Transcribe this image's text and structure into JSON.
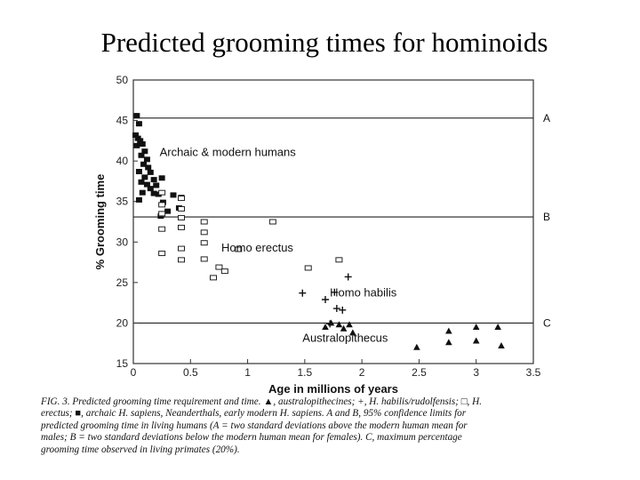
{
  "slide": {
    "title": "Predicted grooming times for hominoids"
  },
  "caption": {
    "lines": [
      "FIG. 3. Predicted grooming time requirement and time. ▲, australopithecines; +, H. habilis/rudolfensis; □, H.",
      "erectus; ■, archaic H. sapiens, Neanderthals, early modern H. sapiens. A and B, 95% confidence limits for",
      "predicted grooming time in living humans (A = two standard deviations above the modern human mean for",
      "males; B = two standard deviations below the modern human mean for females). C, maximum percentage",
      "grooming time observed in living primates (20%)."
    ]
  },
  "chart_data": {
    "type": "scatter",
    "title": "",
    "xlabel": "Age in millions of years",
    "ylabel": "% Grooming time",
    "xlim": [
      0,
      3.5
    ],
    "ylim": [
      15,
      50
    ],
    "xticks": [
      "0",
      "0.5",
      "1",
      "1.5",
      "2",
      "2.5",
      "3",
      "3.5"
    ],
    "yticks": [
      "15",
      "20",
      "25",
      "30",
      "35",
      "40",
      "45",
      "50"
    ],
    "grid": false,
    "reference_lines": [
      {
        "label": "A",
        "y": 45.3
      },
      {
        "label": "B",
        "y": 33.1
      },
      {
        "label": "C",
        "y": 20.0
      }
    ],
    "annotations": [
      {
        "text": "Archaic & modern humans",
        "x": 0.23,
        "y": 40.6
      },
      {
        "text": "Homo erectus",
        "x": 0.77,
        "y": 28.8
      },
      {
        "text": "Homo habilis",
        "x": 1.72,
        "y": 23.3
      },
      {
        "text": "Australopithecus",
        "x": 1.48,
        "y": 17.7
      }
    ],
    "series": [
      {
        "marker": "filled-square",
        "points": [
          [
            0.03,
            45.6
          ],
          [
            0.05,
            44.6
          ],
          [
            0.02,
            43.2
          ],
          [
            0.04,
            42.8
          ],
          [
            0.06,
            42.5
          ],
          [
            0.08,
            42.1
          ],
          [
            0.03,
            41.9
          ],
          [
            0.1,
            41.2
          ],
          [
            0.07,
            40.7
          ],
          [
            0.12,
            40.2
          ],
          [
            0.09,
            39.6
          ],
          [
            0.13,
            39.2
          ],
          [
            0.05,
            38.7
          ],
          [
            0.15,
            38.6
          ],
          [
            0.1,
            38.0
          ],
          [
            0.18,
            37.7
          ],
          [
            0.07,
            37.4
          ],
          [
            0.12,
            37.1
          ],
          [
            0.2,
            37.0
          ],
          [
            0.25,
            37.9
          ],
          [
            0.15,
            36.6
          ],
          [
            0.08,
            36.1
          ],
          [
            0.22,
            35.9
          ],
          [
            0.18,
            36.0
          ],
          [
            0.35,
            35.8
          ],
          [
            0.42,
            35.5
          ],
          [
            0.26,
            34.9
          ],
          [
            0.05,
            35.2
          ],
          [
            0.4,
            34.2
          ],
          [
            0.3,
            33.8
          ],
          [
            0.24,
            33.2
          ]
        ]
      },
      {
        "marker": "open-square",
        "points": [
          [
            0.25,
            36.1
          ],
          [
            0.25,
            34.6
          ],
          [
            0.25,
            33.5
          ],
          [
            0.42,
            35.4
          ],
          [
            0.42,
            34.1
          ],
          [
            0.42,
            33.0
          ],
          [
            0.25,
            31.6
          ],
          [
            0.42,
            31.8
          ],
          [
            0.62,
            32.5
          ],
          [
            0.62,
            31.2
          ],
          [
            0.42,
            29.2
          ],
          [
            0.62,
            29.9
          ],
          [
            0.92,
            29.1
          ],
          [
            0.25,
            28.6
          ],
          [
            0.42,
            27.8
          ],
          [
            0.62,
            27.9
          ],
          [
            0.75,
            26.9
          ],
          [
            0.8,
            26.4
          ],
          [
            0.7,
            25.6
          ],
          [
            1.22,
            32.5
          ],
          [
            1.53,
            26.8
          ],
          [
            1.8,
            27.8
          ]
        ]
      },
      {
        "marker": "plus",
        "points": [
          [
            1.48,
            23.7
          ],
          [
            1.68,
            22.9
          ],
          [
            1.76,
            23.8
          ],
          [
            1.88,
            25.7
          ],
          [
            1.78,
            21.8
          ],
          [
            1.83,
            21.6
          ],
          [
            1.72,
            19.9
          ]
        ]
      },
      {
        "marker": "filled-triangle",
        "points": [
          [
            1.68,
            19.5
          ],
          [
            1.73,
            20.0
          ],
          [
            1.8,
            19.8
          ],
          [
            1.84,
            19.3
          ],
          [
            1.89,
            19.8
          ],
          [
            1.92,
            18.8
          ],
          [
            2.48,
            17.0
          ],
          [
            2.76,
            19.0
          ],
          [
            2.76,
            17.6
          ],
          [
            3.0,
            19.5
          ],
          [
            3.0,
            17.8
          ],
          [
            3.19,
            19.5
          ],
          [
            3.22,
            17.2
          ]
        ]
      }
    ]
  }
}
